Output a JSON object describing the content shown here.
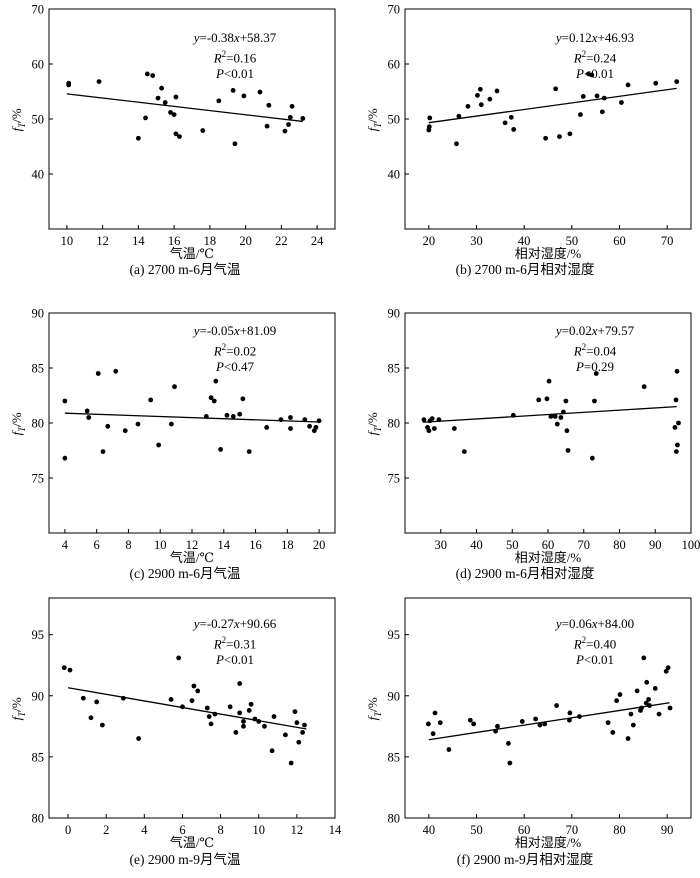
{
  "chart_data": [
    {
      "type": "scatter",
      "caption": "(a) 2700 m-6月气温",
      "xlabel": "气温/℃",
      "ylabel": "fT/%",
      "xlim": [
        9,
        25
      ],
      "ylim": [
        30,
        70
      ],
      "xticks": [
        "10",
        "12",
        "14",
        "16",
        "18",
        "20",
        "22",
        "24"
      ],
      "yticks": [
        "40",
        "50",
        "60",
        "70"
      ],
      "equation": "y=-0.38x+58.37",
      "r2": "R2=0.16",
      "p": "P<0.01",
      "fit": {
        "slope": -0.38,
        "intercept": 58.37,
        "x_range": [
          10,
          23.2
        ]
      },
      "points": [
        [
          10.1,
          56.2
        ],
        [
          10.1,
          56.5
        ],
        [
          11.8,
          56.8
        ],
        [
          14.0,
          46.5
        ],
        [
          14.4,
          50.2
        ],
        [
          14.5,
          58.2
        ],
        [
          14.8,
          57.9
        ],
        [
          15.1,
          53.8
        ],
        [
          15.3,
          55.6
        ],
        [
          15.5,
          53.0
        ],
        [
          15.8,
          51.2
        ],
        [
          16.0,
          50.8
        ],
        [
          16.1,
          54.0
        ],
        [
          16.1,
          47.3
        ],
        [
          16.3,
          46.8
        ],
        [
          17.6,
          47.9
        ],
        [
          18.5,
          53.3
        ],
        [
          19.3,
          55.2
        ],
        [
          19.4,
          45.5
        ],
        [
          19.9,
          54.2
        ],
        [
          20.8,
          54.9
        ],
        [
          21.2,
          48.7
        ],
        [
          21.3,
          52.5
        ],
        [
          22.2,
          47.8
        ],
        [
          22.4,
          49.0
        ],
        [
          22.5,
          50.3
        ],
        [
          22.6,
          52.3
        ],
        [
          23.2,
          50.1
        ]
      ]
    },
    {
      "type": "scatter",
      "caption": "(b) 2700 m-6月相对湿度",
      "xlabel": "相对湿度/%",
      "ylabel": "fT/%",
      "xlim": [
        15,
        75
      ],
      "ylim": [
        30,
        70
      ],
      "xticks": [
        "20",
        "30",
        "40",
        "50",
        "60",
        "70"
      ],
      "yticks": [
        "40",
        "50",
        "60",
        "70"
      ],
      "equation": "y=0.12x+46.93",
      "r2": "R2=0.24",
      "p": "P<0.01",
      "fit": {
        "slope": 0.12,
        "intercept": 46.93,
        "x_range": [
          20,
          72
        ]
      },
      "points": [
        [
          20.0,
          48.0
        ],
        [
          20.1,
          48.6
        ],
        [
          20.2,
          50.2
        ],
        [
          25.8,
          45.5
        ],
        [
          26.3,
          50.5
        ],
        [
          28.2,
          52.3
        ],
        [
          30.2,
          54.3
        ],
        [
          30.8,
          55.4
        ],
        [
          31.0,
          52.6
        ],
        [
          32.8,
          53.6
        ],
        [
          34.3,
          55.1
        ],
        [
          36.0,
          49.3
        ],
        [
          37.3,
          50.3
        ],
        [
          37.8,
          48.1
        ],
        [
          44.5,
          46.5
        ],
        [
          46.6,
          55.5
        ],
        [
          47.4,
          46.8
        ],
        [
          49.6,
          47.3
        ],
        [
          51.8,
          50.8
        ],
        [
          52.4,
          54.1
        ],
        [
          53.5,
          58.2
        ],
        [
          54.2,
          58.0
        ],
        [
          55.3,
          54.2
        ],
        [
          56.4,
          51.3
        ],
        [
          56.8,
          53.8
        ],
        [
          60.4,
          53.0
        ],
        [
          61.8,
          56.2
        ],
        [
          67.6,
          56.5
        ],
        [
          72.0,
          56.8
        ]
      ]
    },
    {
      "type": "scatter",
      "caption": "(c) 2900 m-6月气温",
      "xlabel": "气温/℃",
      "ylabel": "fT/%",
      "xlim": [
        3,
        21
      ],
      "ylim": [
        70,
        90
      ],
      "xticks": [
        "4",
        "6",
        "8",
        "10",
        "12",
        "14",
        "16",
        "18",
        "20"
      ],
      "yticks": [
        "75",
        "80",
        "85",
        "90"
      ],
      "equation": "y=-0.05x+81.09",
      "r2": "R2=0.02",
      "p": "P<0.47",
      "fit": {
        "slope": -0.05,
        "intercept": 81.09,
        "x_range": [
          4,
          20
        ]
      },
      "points": [
        [
          4.0,
          82.0
        ],
        [
          4.0,
          76.8
        ],
        [
          5.4,
          81.1
        ],
        [
          5.5,
          80.5
        ],
        [
          6.1,
          84.5
        ],
        [
          6.4,
          77.4
        ],
        [
          6.7,
          79.7
        ],
        [
          7.2,
          84.7
        ],
        [
          7.8,
          79.3
        ],
        [
          8.6,
          79.9
        ],
        [
          9.4,
          82.1
        ],
        [
          9.9,
          78.0
        ],
        [
          10.7,
          79.9
        ],
        [
          10.9,
          83.3
        ],
        [
          12.9,
          80.6
        ],
        [
          13.2,
          82.3
        ],
        [
          13.4,
          82.0
        ],
        [
          13.5,
          83.8
        ],
        [
          13.8,
          77.6
        ],
        [
          14.2,
          80.7
        ],
        [
          14.6,
          80.6
        ],
        [
          15.0,
          80.8
        ],
        [
          15.2,
          82.2
        ],
        [
          15.6,
          77.4
        ],
        [
          16.7,
          79.6
        ],
        [
          17.6,
          80.3
        ],
        [
          18.2,
          79.5
        ],
        [
          18.2,
          80.5
        ],
        [
          19.1,
          80.3
        ],
        [
          19.4,
          79.7
        ],
        [
          19.7,
          79.3
        ],
        [
          19.8,
          79.6
        ],
        [
          20.0,
          80.2
        ]
      ]
    },
    {
      "type": "scatter",
      "caption": "(d) 2900 m-6月相对湿度",
      "xlabel": "相对湿度/%",
      "ylabel": "fT/%",
      "xlim": [
        20,
        100
      ],
      "ylim": [
        70,
        90
      ],
      "xticks": [
        "30",
        "40",
        "50",
        "60",
        "70",
        "80",
        "90",
        "100"
      ],
      "yticks": [
        "75",
        "80",
        "85",
        "90"
      ],
      "equation": "y=0.02x+79.57",
      "r2": "R2=0.04",
      "p": "P=0.29",
      "fit": {
        "slope": 0.02,
        "intercept": 79.57,
        "x_range": [
          25,
          96
        ]
      },
      "points": [
        [
          25.3,
          80.3
        ],
        [
          26.3,
          79.6
        ],
        [
          26.7,
          79.3
        ],
        [
          27.0,
          80.2
        ],
        [
          27.6,
          80.4
        ],
        [
          28.2,
          79.5
        ],
        [
          29.5,
          80.3
        ],
        [
          33.8,
          79.5
        ],
        [
          36.6,
          77.4
        ],
        [
          50.3,
          80.7
        ],
        [
          57.4,
          82.1
        ],
        [
          59.7,
          82.2
        ],
        [
          60.3,
          83.8
        ],
        [
          60.8,
          80.6
        ],
        [
          62.0,
          80.6
        ],
        [
          62.6,
          79.9
        ],
        [
          63.6,
          80.5
        ],
        [
          64.3,
          81.0
        ],
        [
          65.0,
          82.0
        ],
        [
          65.3,
          79.3
        ],
        [
          65.6,
          77.5
        ],
        [
          72.4,
          76.8
        ],
        [
          73.0,
          82.0
        ],
        [
          73.5,
          84.5
        ],
        [
          86.9,
          83.3
        ],
        [
          95.5,
          79.6
        ],
        [
          95.8,
          82.1
        ],
        [
          95.9,
          77.4
        ],
        [
          96.1,
          84.7
        ],
        [
          96.2,
          78.0
        ],
        [
          96.5,
          80.0
        ]
      ]
    },
    {
      "type": "scatter",
      "caption": "(e) 2900 m-9月气温",
      "xlabel": "气温/℃",
      "ylabel": "fT/%",
      "xlim": [
        -1,
        14
      ],
      "ylim": [
        80,
        98
      ],
      "xticks": [
        "0",
        "2",
        "4",
        "6",
        "8",
        "10",
        "12",
        "14"
      ],
      "yticks": [
        "80",
        "85",
        "90",
        "95"
      ],
      "equation": "y=-0.27x+90.66",
      "r2": "R2=0.31",
      "p": "P<0.01",
      "fit": {
        "slope": -0.27,
        "intercept": 90.66,
        "x_range": [
          0,
          12.5
        ]
      },
      "points": [
        [
          -0.2,
          92.3
        ],
        [
          0.1,
          92.1
        ],
        [
          0.8,
          89.8
        ],
        [
          1.2,
          88.2
        ],
        [
          1.8,
          87.6
        ],
        [
          1.5,
          89.5
        ],
        [
          2.9,
          89.8
        ],
        [
          3.7,
          86.5
        ],
        [
          5.4,
          89.7
        ],
        [
          5.8,
          93.1
        ],
        [
          6.0,
          89.1
        ],
        [
          6.5,
          89.6
        ],
        [
          6.6,
          90.8
        ],
        [
          6.8,
          90.4
        ],
        [
          7.3,
          89.0
        ],
        [
          7.4,
          88.3
        ],
        [
          7.5,
          87.7
        ],
        [
          7.7,
          88.5
        ],
        [
          8.5,
          89.1
        ],
        [
          8.8,
          87.0
        ],
        [
          9.0,
          91.0
        ],
        [
          9.0,
          88.6
        ],
        [
          9.2,
          87.9
        ],
        [
          9.2,
          87.5
        ],
        [
          9.5,
          88.8
        ],
        [
          9.6,
          89.3
        ],
        [
          9.8,
          88.1
        ],
        [
          10.0,
          87.9
        ],
        [
          10.3,
          87.5
        ],
        [
          10.7,
          85.5
        ],
        [
          10.8,
          88.3
        ],
        [
          11.4,
          86.8
        ],
        [
          11.7,
          84.5
        ],
        [
          11.9,
          88.7
        ],
        [
          12.0,
          87.8
        ],
        [
          12.1,
          86.2
        ],
        [
          12.3,
          87.0
        ],
        [
          12.4,
          87.6
        ]
      ]
    },
    {
      "type": "scatter",
      "caption": "(f) 2900 m-9月相对湿度",
      "xlabel": "相对湿度/%",
      "ylabel": "fT/%",
      "xlim": [
        35,
        95
      ],
      "ylim": [
        80,
        98
      ],
      "xticks": [
        "40",
        "50",
        "60",
        "70",
        "80",
        "90"
      ],
      "yticks": [
        "80",
        "85",
        "90",
        "95"
      ],
      "equation": "y=0.06x+84.00",
      "r2": "R2=0.40",
      "p": "P<0.01",
      "fit": {
        "slope": 0.06,
        "intercept": 84.0,
        "x_range": [
          40,
          90.5
        ]
      },
      "points": [
        [
          39.9,
          87.7
        ],
        [
          40.9,
          86.9
        ],
        [
          41.3,
          88.6
        ],
        [
          42.4,
          87.8
        ],
        [
          44.2,
          85.6
        ],
        [
          48.7,
          88.0
        ],
        [
          49.4,
          87.7
        ],
        [
          54.0,
          87.1
        ],
        [
          54.4,
          87.5
        ],
        [
          56.7,
          86.1
        ],
        [
          57.0,
          84.5
        ],
        [
          59.6,
          87.9
        ],
        [
          62.4,
          88.1
        ],
        [
          63.3,
          87.6
        ],
        [
          64.3,
          87.7
        ],
        [
          66.8,
          89.2
        ],
        [
          69.5,
          88.0
        ],
        [
          69.6,
          88.6
        ],
        [
          71.6,
          88.3
        ],
        [
          77.6,
          87.8
        ],
        [
          78.6,
          87.0
        ],
        [
          79.4,
          89.6
        ],
        [
          80.1,
          90.1
        ],
        [
          81.8,
          86.5
        ],
        [
          82.4,
          88.5
        ],
        [
          82.9,
          87.6
        ],
        [
          83.7,
          90.4
        ],
        [
          84.4,
          88.8
        ],
        [
          84.6,
          89.0
        ],
        [
          85.1,
          93.1
        ],
        [
          85.6,
          89.4
        ],
        [
          85.7,
          91.1
        ],
        [
          86.1,
          89.7
        ],
        [
          86.3,
          89.2
        ],
        [
          87.5,
          90.6
        ],
        [
          88.3,
          88.5
        ],
        [
          89.8,
          92.0
        ],
        [
          90.2,
          92.3
        ],
        [
          90.6,
          89.0
        ]
      ]
    }
  ]
}
